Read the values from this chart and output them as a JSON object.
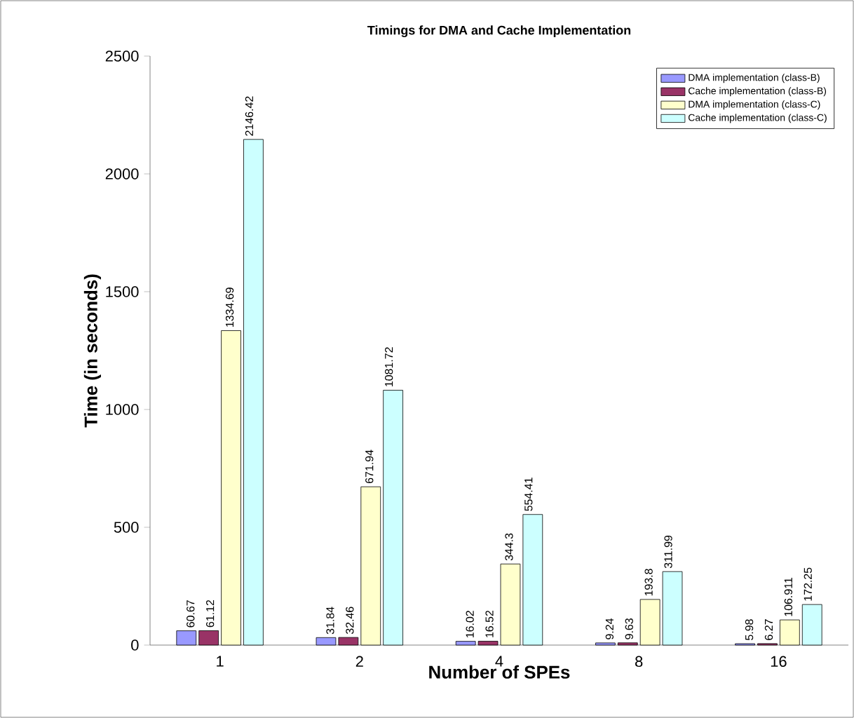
{
  "chart_data": {
    "type": "bar",
    "title": "Timings for DMA and Cache Implementation",
    "xlabel": "Number of SPEs",
    "ylabel": "Time (in seconds)",
    "categories": [
      "1",
      "2",
      "4",
      "8",
      "16"
    ],
    "series": [
      {
        "name": "DMA implementation (class-B)",
        "color": "#9999ff",
        "values": [
          60.67,
          31.84,
          16.02,
          9.24,
          5.98
        ]
      },
      {
        "name": "Cache implementation (class-B)",
        "color": "#993366",
        "values": [
          61.12,
          32.46,
          16.52,
          9.63,
          6.27
        ]
      },
      {
        "name": "DMA implementation (class-C)",
        "color": "#ffffcc",
        "values": [
          1334.69,
          671.94,
          344.3,
          193.8,
          106.911
        ]
      },
      {
        "name": "Cache implementation (class-C)",
        "color": "#ccffff",
        "values": [
          2146.42,
          1081.72,
          554.41,
          311.99,
          172.25
        ]
      }
    ],
    "ylim": [
      0,
      2500
    ],
    "yticks": [
      0,
      500,
      1000,
      1500,
      2000,
      2500
    ],
    "grid": false,
    "legend": "top right",
    "data_labels": true
  }
}
